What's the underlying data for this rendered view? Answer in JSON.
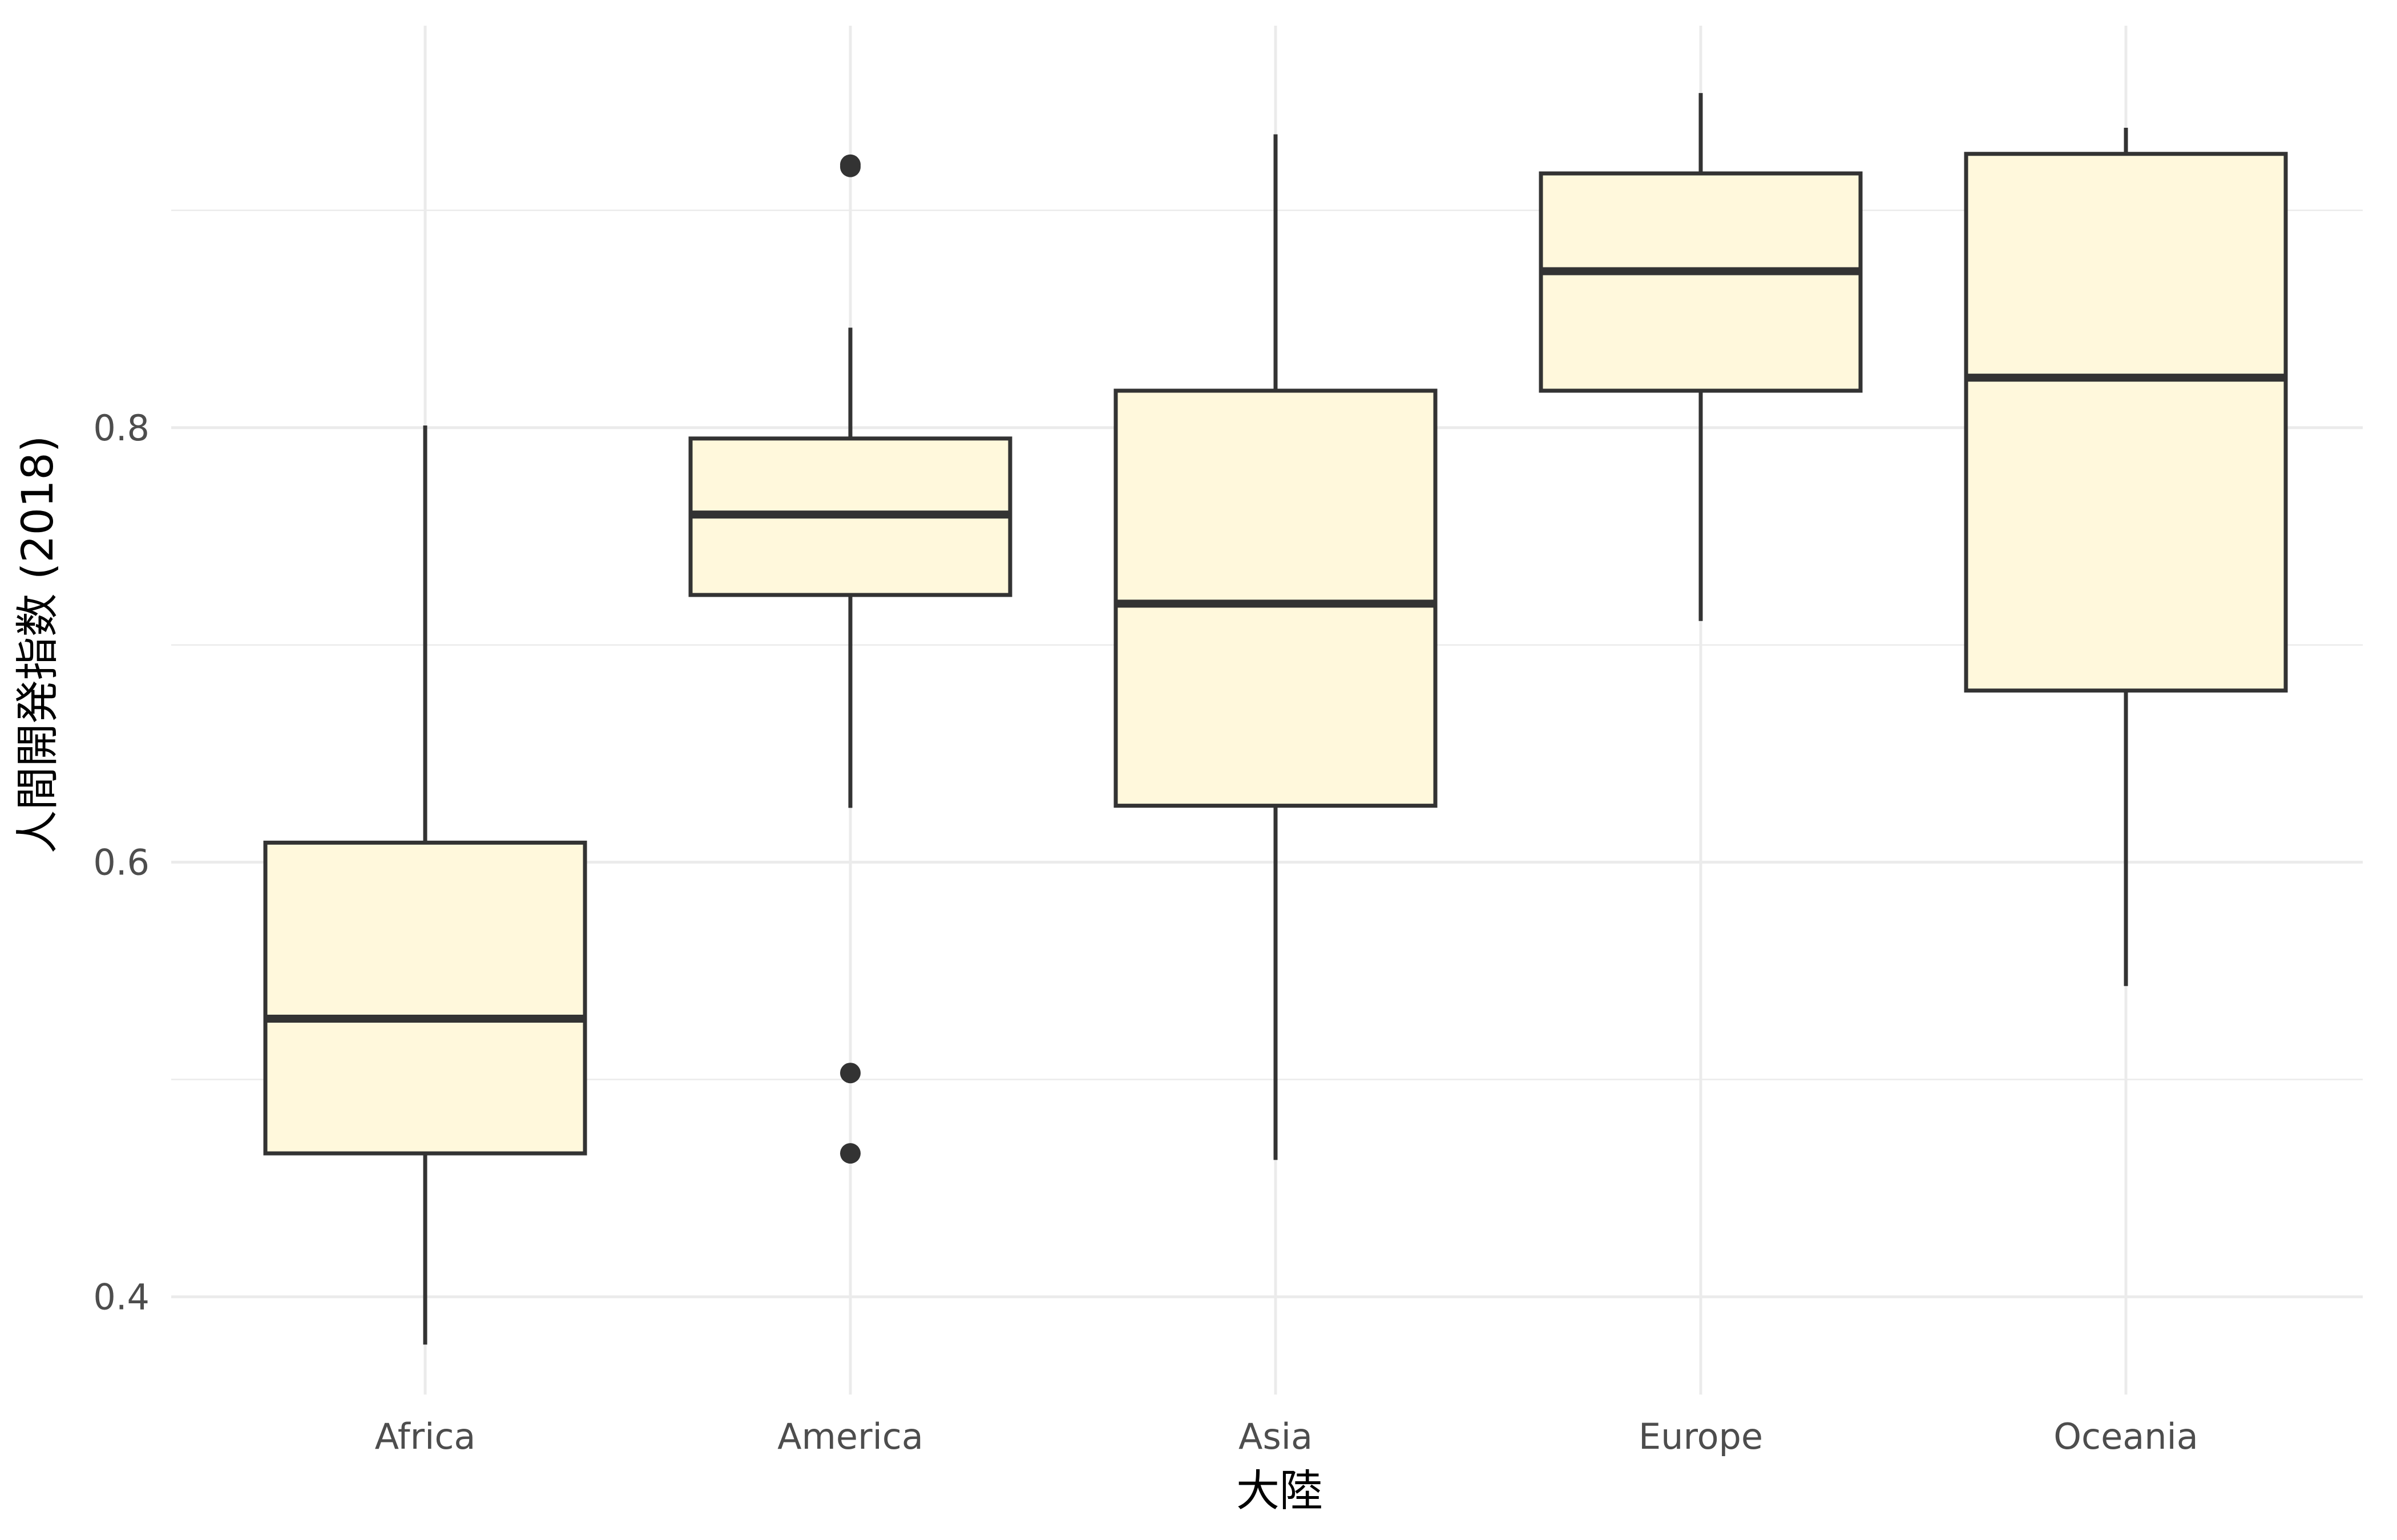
{
  "chart_data": {
    "type": "box",
    "xlabel": "大陸",
    "ylabel": "人間開発指数 (2018)",
    "ylim": [
      0.355,
      0.985
    ],
    "yticks": [
      0.4,
      0.6,
      0.8
    ],
    "ytick_labels": [
      "0.4",
      "0.6",
      "0.8"
    ],
    "y_minor_ticks": [
      0.5,
      0.7,
      0.9
    ],
    "grid": true,
    "legend": "none",
    "categories": [
      "Africa",
      "America",
      "Asia",
      "Europe",
      "Oceania"
    ],
    "boxes": [
      {
        "name": "Africa",
        "min": 0.378,
        "q1": 0.466,
        "median": 0.528,
        "q3": 0.609,
        "max": 0.801,
        "outliers": []
      },
      {
        "name": "America",
        "min": 0.625,
        "q1": 0.723,
        "median": 0.76,
        "q3": 0.795,
        "max": 0.846,
        "outliers": [
          0.921,
          0.92,
          0.503,
          0.466
        ]
      },
      {
        "name": "Asia",
        "min": 0.463,
        "q1": 0.626,
        "median": 0.719,
        "q3": 0.817,
        "max": 0.935,
        "outliers": []
      },
      {
        "name": "Europe",
        "min": 0.711,
        "q1": 0.817,
        "median": 0.872,
        "q3": 0.917,
        "max": 0.954,
        "outliers": []
      },
      {
        "name": "Oceania",
        "min": 0.543,
        "q1": 0.679,
        "median": 0.823,
        "q3": 0.926,
        "max": 0.938,
        "outliers": []
      }
    ],
    "box_fill": "#fff8dc",
    "box_stroke": "#333333"
  }
}
